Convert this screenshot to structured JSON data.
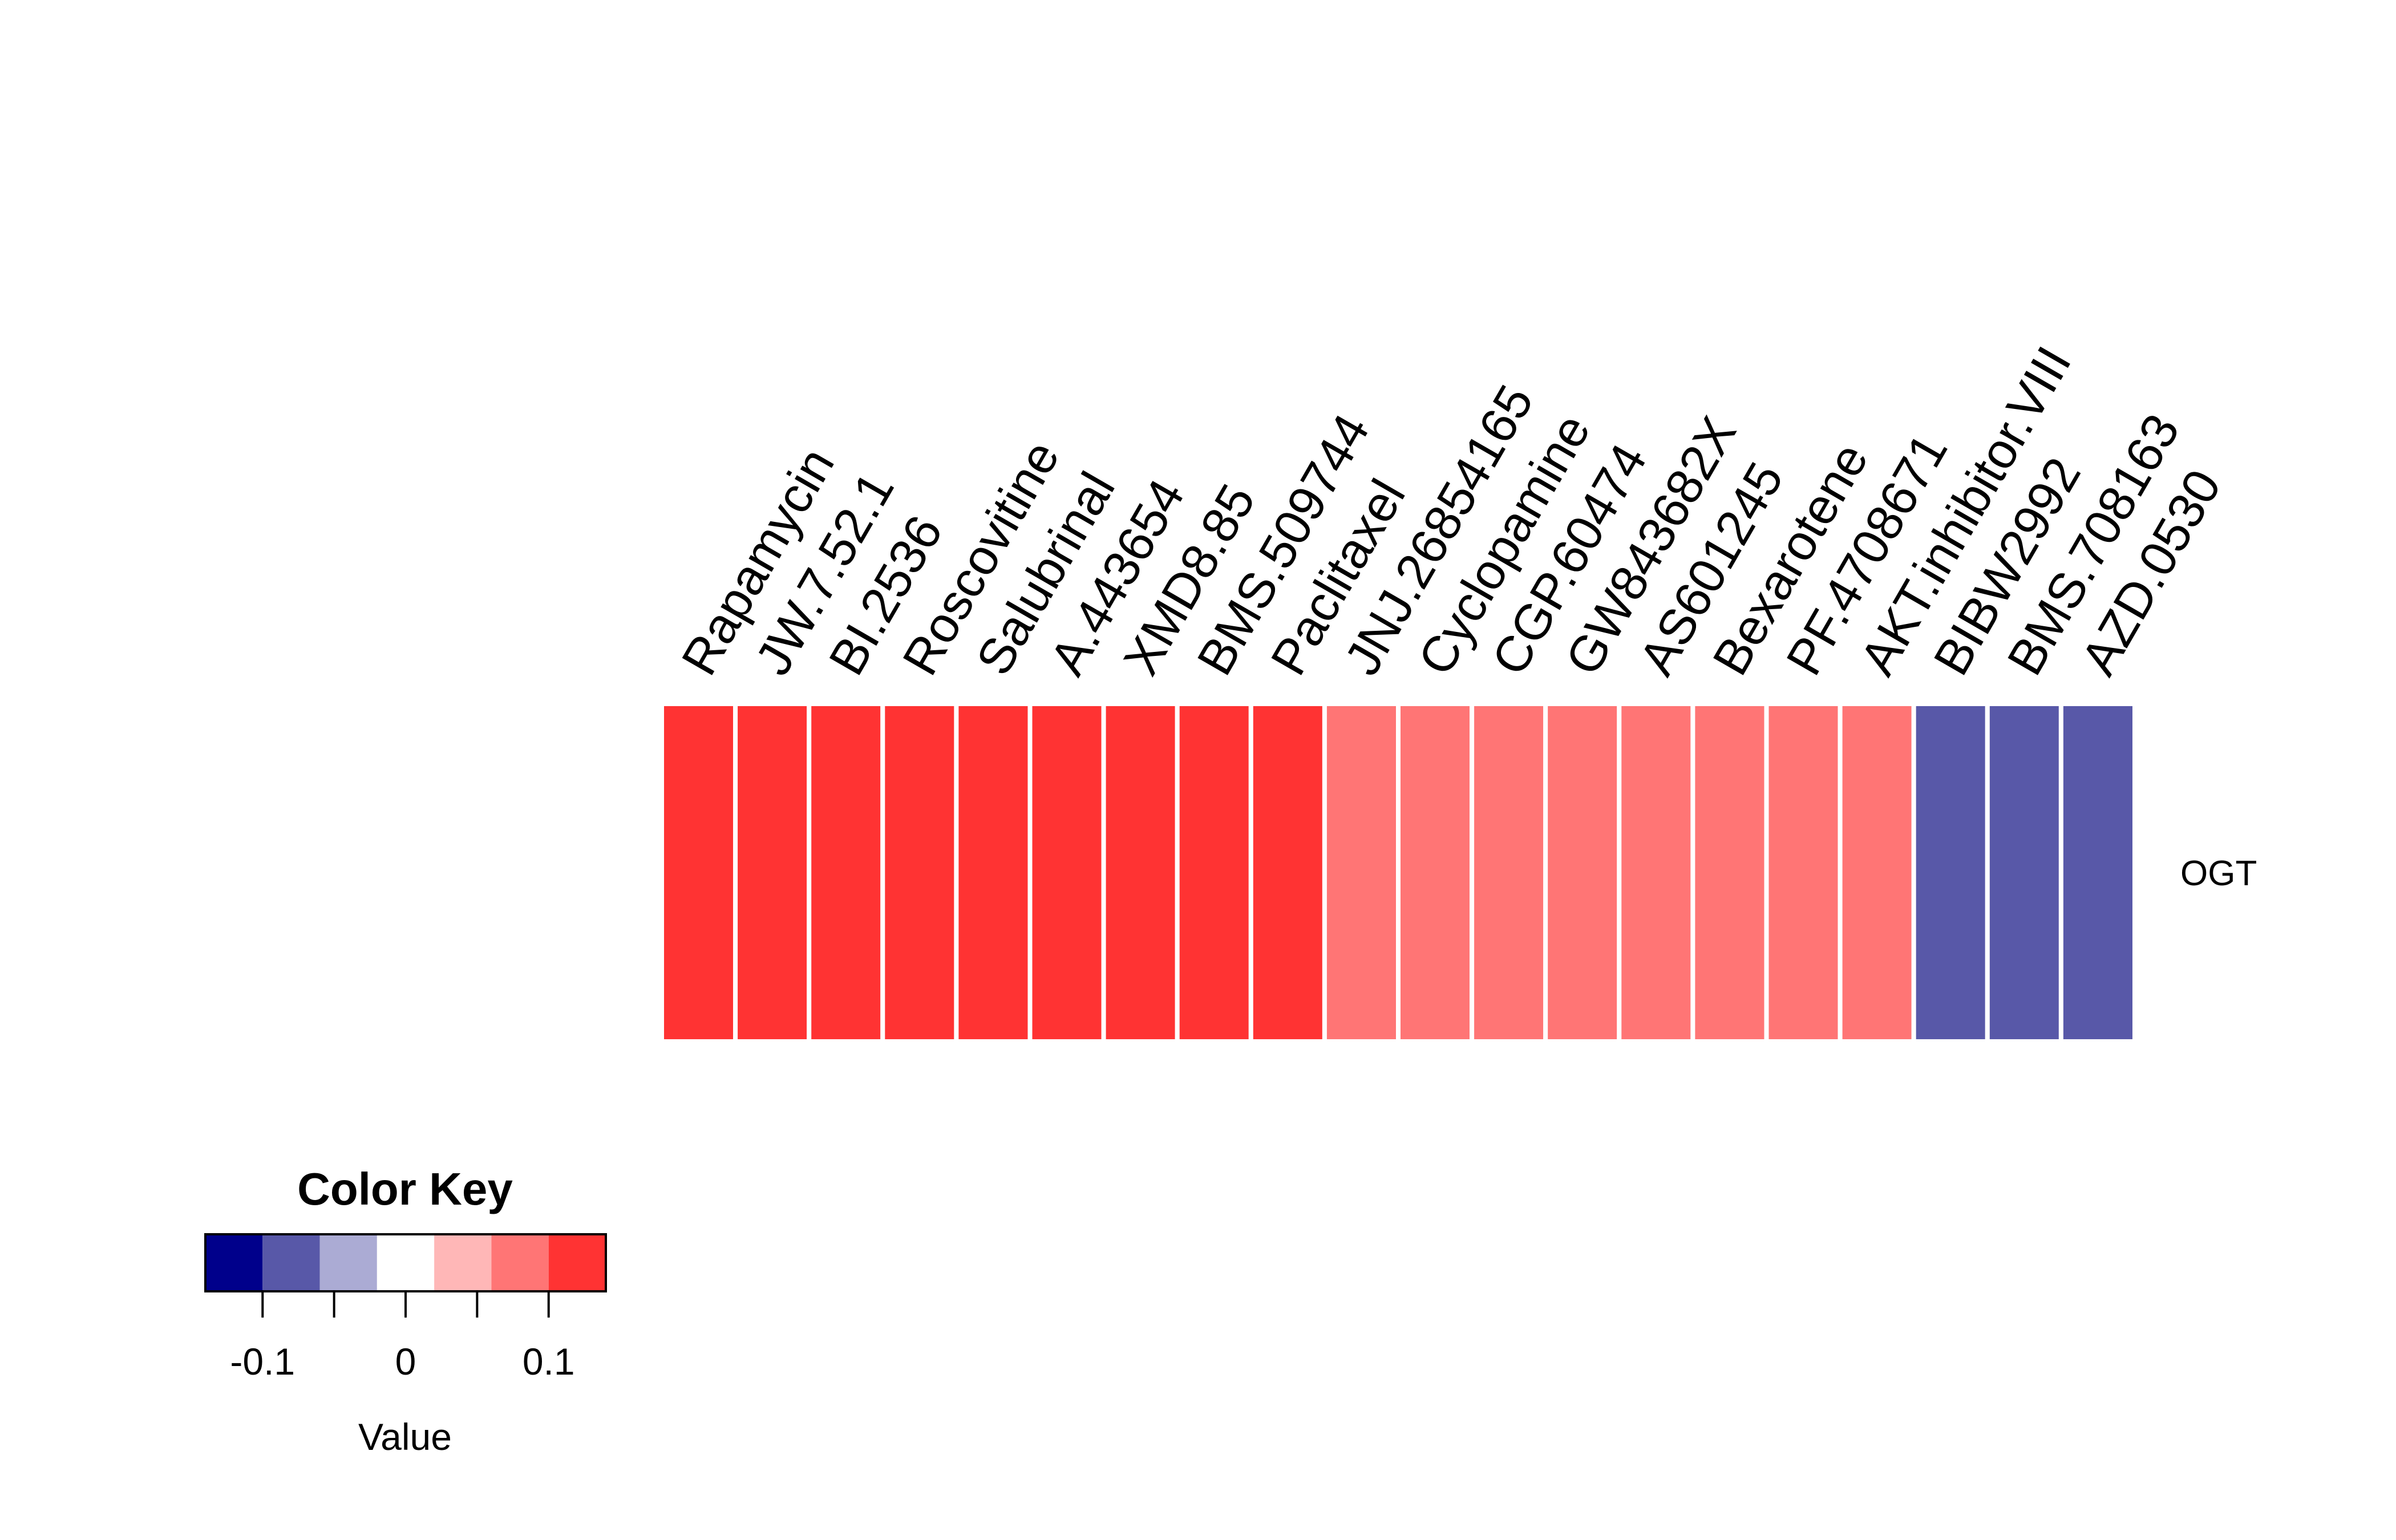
{
  "chart_data": {
    "type": "heatmap",
    "rows": [
      "OGT"
    ],
    "columns": [
      "Rapamycin",
      "JW.7.52.1",
      "BI.2536",
      "Roscovitine",
      "Salubrinal",
      "A.443654",
      "XMD8.85",
      "BMS.509744",
      "Paclitaxel",
      "JNJ.26854165",
      "Cyclopamine",
      "CGP.60474",
      "GW843682X",
      "AS601245",
      "Bexarotene",
      "PF.4708671",
      "AKT.inhibitor.VIII",
      "BIBW2992",
      "BMS.708163",
      "AZD.0530"
    ],
    "values": [
      [
        0.12,
        0.12,
        0.12,
        0.12,
        0.12,
        0.12,
        0.12,
        0.12,
        0.12,
        0.08,
        0.08,
        0.08,
        0.08,
        0.08,
        0.08,
        0.08,
        0.08,
        -0.08,
        -0.08,
        -0.08
      ]
    ],
    "color_key": {
      "title": "Color Key",
      "xlabel": "Value",
      "range": [
        -0.14,
        0.14
      ],
      "colors": [
        "#00008B",
        "#5858A8",
        "#ABABD4",
        "#FFFFFF",
        "#FFB7B7",
        "#FF7575",
        "#FF3333"
      ],
      "ticks": [
        -0.1,
        -0.05,
        0,
        0.05,
        0.1
      ],
      "tick_labels": [
        "-0.1",
        "",
        "0",
        "",
        "0.1"
      ]
    }
  }
}
